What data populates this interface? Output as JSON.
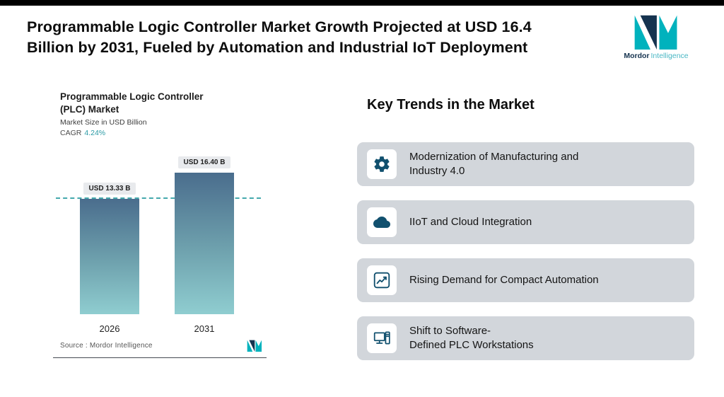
{
  "header": {
    "title_line1": "Programmable Logic Controller Market Growth Projected at USD 16.4",
    "title_line2": "Billion by 2031, Fueled by Automation and Industrial IoT Deployment",
    "brand_name": "Mordor",
    "brand_suffix": "Intelligence"
  },
  "chart": {
    "title_line1": "Programmable Logic Controller",
    "title_line2": "(PLC) Market",
    "subtitle": "Market Size in USD Billion",
    "cagr_label": "CAGR",
    "cagr_value": "4.24%",
    "source": "Source :  Mordor Intelligence"
  },
  "chart_data": {
    "type": "bar",
    "title": "Programmable Logic Controller (PLC) Market",
    "ylabel": "Market Size in USD Billion",
    "cagr_percent": 4.24,
    "categories": [
      "2026",
      "2031"
    ],
    "values": [
      13.33,
      16.4
    ],
    "value_labels": [
      "USD 13.33 B",
      "USD 16.40 B"
    ],
    "reference_line": 13.33,
    "ylim": [
      0,
      16.4
    ],
    "grid": false,
    "legend": false
  },
  "trends": {
    "heading": "Key Trends in the Market",
    "items": [
      {
        "icon": "gear-icon",
        "label": "Modernization of Manufacturing and\nIndustry 4.0"
      },
      {
        "icon": "cloud-icon",
        "label": "IIoT and Cloud Integration"
      },
      {
        "icon": "line-chart-icon",
        "label": "Rising Demand for Compact Automation"
      },
      {
        "icon": "workstation-icon",
        "label": "Shift to Software-\nDefined PLC Workstations"
      }
    ]
  },
  "colors": {
    "accent_teal": "#00b2bd",
    "brand_navy": "#15334f",
    "bar_top": "#4a6d8d",
    "bar_bottom": "#8fcdd0",
    "dash_line": "#45a9ad",
    "card_gray": "#d2d6db",
    "icon_navy": "#11506e"
  }
}
